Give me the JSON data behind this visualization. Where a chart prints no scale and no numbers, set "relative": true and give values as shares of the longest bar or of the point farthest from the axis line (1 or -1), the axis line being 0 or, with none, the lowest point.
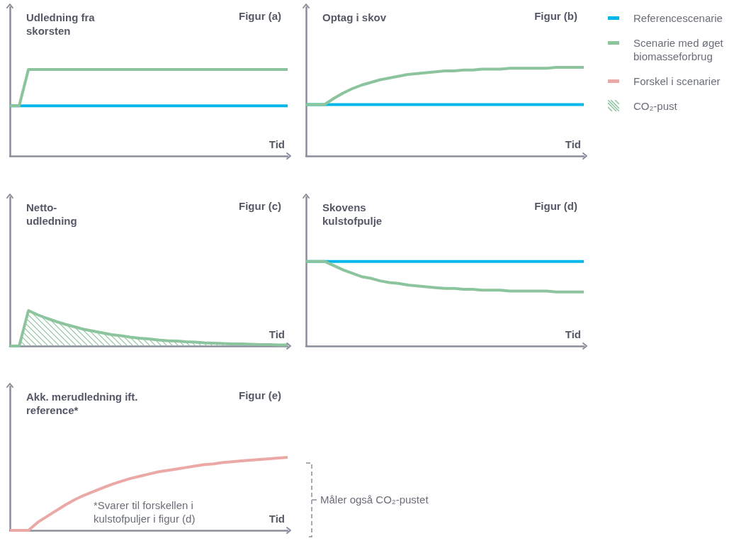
{
  "chart_data": [
    {
      "type": "line",
      "relative": true,
      "title": "Udledning fra\nskorsten",
      "subtitle": "Figur (a)",
      "xlabel": "Tid",
      "legend": "right",
      "categories": [
        null,
        null,
        null,
        null,
        null,
        null,
        null,
        null,
        null,
        null,
        null,
        null,
        null,
        null,
        null,
        null,
        null,
        null,
        null,
        null,
        null,
        null,
        null,
        null,
        null,
        null,
        null,
        null,
        null,
        null,
        null
      ],
      "series": [
        {
          "name": "Referencescenarie",
          "color": "#00b6ea",
          "values": [
            0.58,
            0.58,
            0.58,
            0.58,
            0.58,
            0.58,
            0.58,
            0.58,
            0.58,
            0.58,
            0.58,
            0.58,
            0.58,
            0.58,
            0.58,
            0.58,
            0.58,
            0.58,
            0.58,
            0.58,
            0.58,
            0.58,
            0.58,
            0.58,
            0.58,
            0.58,
            0.58,
            0.58,
            0.58,
            0.58,
            0.58
          ]
        },
        {
          "name": "Scenarie med øget biomasseforbrug",
          "color": "#8cc49e",
          "values": [
            0.58,
            0.58,
            1,
            1,
            1,
            1,
            1,
            1,
            1,
            1,
            1,
            1,
            1,
            1,
            1,
            1,
            1,
            1,
            1,
            1,
            1,
            1,
            1,
            1,
            1,
            1,
            1,
            1,
            1,
            1,
            1
          ]
        }
      ]
    },
    {
      "type": "line",
      "relative": true,
      "title": "Optag i skov",
      "subtitle": "Figur (b)",
      "xlabel": "Tid",
      "legend": "right",
      "categories": [
        null,
        null,
        null,
        null,
        null,
        null,
        null,
        null,
        null,
        null,
        null,
        null,
        null,
        null,
        null,
        null,
        null,
        null,
        null,
        null,
        null,
        null,
        null,
        null,
        null,
        null,
        null,
        null,
        null,
        null,
        null
      ],
      "series": [
        {
          "name": "Referencescenarie",
          "color": "#00b6ea",
          "values": [
            0.58,
            0.58,
            0.58,
            0.58,
            0.58,
            0.58,
            0.58,
            0.58,
            0.58,
            0.58,
            0.58,
            0.58,
            0.58,
            0.58,
            0.58,
            0.58,
            0.58,
            0.58,
            0.58,
            0.58,
            0.58,
            0.58,
            0.58,
            0.58,
            0.58,
            0.58,
            0.58,
            0.58,
            0.58,
            0.58,
            0.58
          ]
        },
        {
          "name": "Scenarie med øget biomasseforbrug",
          "color": "#8cc49e",
          "values": [
            0.58,
            0.58,
            0.58,
            0.65,
            0.71,
            0.76,
            0.8,
            0.83,
            0.86,
            0.88,
            0.9,
            0.92,
            0.93,
            0.94,
            0.95,
            0.96,
            0.96,
            0.97,
            0.97,
            0.98,
            0.98,
            0.98,
            0.99,
            0.99,
            0.99,
            0.99,
            0.99,
            1,
            1,
            1,
            1
          ]
        }
      ]
    },
    {
      "type": "area",
      "relative": true,
      "title": "Netto-\nudledning",
      "subtitle": "Figur (c)",
      "xlabel": "Tid",
      "legend": "right",
      "categories": [
        null,
        null,
        null,
        null,
        null,
        null,
        null,
        null,
        null,
        null,
        null,
        null,
        null,
        null,
        null,
        null,
        null,
        null,
        null,
        null,
        null,
        null,
        null,
        null,
        null,
        null,
        null,
        null,
        null,
        null,
        null
      ],
      "series": [
        {
          "name": "CO₂-pust",
          "color": "#8cc49e",
          "values": [
            0,
            0,
            1,
            0.88,
            0.78,
            0.69,
            0.61,
            0.54,
            0.47,
            0.42,
            0.37,
            0.32,
            0.29,
            0.25,
            0.22,
            0.2,
            0.17,
            0.15,
            0.14,
            0.12,
            0.11,
            0.09,
            0.08,
            0.07,
            0.06,
            0.06,
            0.05,
            0.04,
            0.04,
            0.03,
            0.03
          ]
        }
      ]
    },
    {
      "type": "line",
      "relative": true,
      "title": "Skovens\nkulstofpulje",
      "subtitle": "Figur (d)",
      "xlabel": "Tid",
      "legend": "right",
      "categories": [
        null,
        null,
        null,
        null,
        null,
        null,
        null,
        null,
        null,
        null,
        null,
        null,
        null,
        null,
        null,
        null,
        null,
        null,
        null,
        null,
        null,
        null,
        null,
        null,
        null,
        null,
        null,
        null,
        null,
        null,
        null
      ],
      "series": [
        {
          "name": "Referencescenarie",
          "color": "#00b6ea",
          "values": [
            1,
            1,
            1,
            1,
            1,
            1,
            1,
            1,
            1,
            1,
            1,
            1,
            1,
            1,
            1,
            1,
            1,
            1,
            1,
            1,
            1,
            1,
            1,
            1,
            1,
            1,
            1,
            1,
            1,
            1,
            1
          ]
        },
        {
          "name": "Scenarie med øget biomasseforbrug",
          "color": "#8cc49e",
          "values": [
            1,
            1,
            1,
            0.95,
            0.9,
            0.86,
            0.82,
            0.8,
            0.77,
            0.75,
            0.74,
            0.72,
            0.71,
            0.7,
            0.69,
            0.68,
            0.68,
            0.67,
            0.67,
            0.66,
            0.66,
            0.66,
            0.65,
            0.65,
            0.65,
            0.65,
            0.65,
            0.64,
            0.64,
            0.64,
            0.64
          ]
        }
      ]
    },
    {
      "type": "line",
      "relative": true,
      "title": "Akk. merudledning ift.\nreference*",
      "subtitle": "Figur (e)",
      "xlabel": "Tid",
      "legend": "right",
      "annotations": [
        "*Svarer til forskellen i\nkulstofpuljer i figur (d)",
        "Måler også CO₂-pustet"
      ],
      "categories": [
        null,
        null,
        null,
        null,
        null,
        null,
        null,
        null,
        null,
        null,
        null,
        null,
        null,
        null,
        null,
        null,
        null,
        null,
        null,
        null,
        null,
        null,
        null,
        null,
        null,
        null,
        null,
        null,
        null,
        null,
        null
      ],
      "series": [
        {
          "name": "Forskel i scenarier",
          "color": "#eba9a5",
          "values": [
            0,
            0,
            0,
            0.11,
            0.19,
            0.27,
            0.35,
            0.42,
            0.48,
            0.53,
            0.58,
            0.63,
            0.67,
            0.71,
            0.74,
            0.77,
            0.8,
            0.82,
            0.84,
            0.86,
            0.88,
            0.9,
            0.91,
            0.93,
            0.94,
            0.95,
            0.96,
            0.97,
            0.98,
            0.99,
            1
          ]
        }
      ]
    }
  ]
}
